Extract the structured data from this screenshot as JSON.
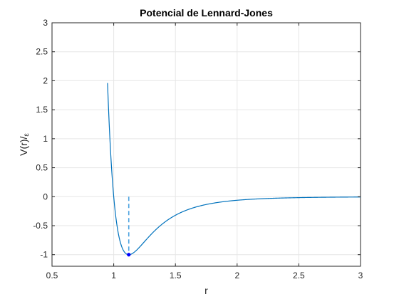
{
  "chart_data": {
    "type": "line",
    "title": "Potencial de Lennard-Jones",
    "xlabel": "r",
    "ylabel_main": "V(r)/",
    "ylabel_sub": "ε",
    "xlim": [
      0.5,
      3
    ],
    "ylim": [
      -1.2,
      3
    ],
    "xticks": [
      0.5,
      1,
      1.5,
      2,
      2.5,
      3
    ],
    "xtick_labels": [
      "0.5",
      "1",
      "1.5",
      "2",
      "2.5",
      "3"
    ],
    "yticks": [
      -1,
      -0.5,
      0,
      0.5,
      1,
      1.5,
      2,
      2.5,
      3
    ],
    "ytick_labels": [
      "-1",
      "-0.5",
      "0",
      "0.5",
      "1",
      "1.5",
      "2",
      "2.5",
      "3"
    ],
    "grid": true,
    "series": [
      {
        "kind": "curve",
        "function": "lennard-jones",
        "formula": "4*(r^-12 - r^-6)",
        "x_range": [
          0.95,
          3
        ],
        "color": "#0072BD"
      },
      {
        "kind": "dashed-line",
        "x": [
          1.122,
          1.122
        ],
        "y": [
          0,
          -1
        ],
        "color": "#4DA3E0"
      },
      {
        "kind": "marker",
        "x": 1.122,
        "y": -1,
        "color": "#0000FF"
      }
    ]
  }
}
